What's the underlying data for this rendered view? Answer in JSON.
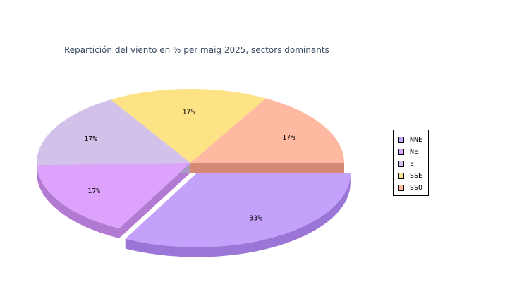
{
  "chart_data": {
    "type": "pie",
    "title": "Repartición del viento en % per maig 2025, sectors dominants",
    "categories": [
      "NNE",
      "NE",
      "E",
      "SSE",
      "SSO"
    ],
    "values": [
      33,
      17,
      17,
      17,
      17
    ],
    "labels": [
      "33%",
      "17%",
      "17%",
      "17%",
      "17%"
    ],
    "colors": [
      "#c4a2fc",
      "#dca2fc",
      "#d2c2ea",
      "#fde286",
      "#feb9a0"
    ],
    "side_colors": [
      "#9b76d6",
      "#b27ad2",
      "#a99ac4",
      "#d0b45c",
      "#d58a75"
    ],
    "exploded": "NNE",
    "style": "3d",
    "legend_position": "right"
  }
}
